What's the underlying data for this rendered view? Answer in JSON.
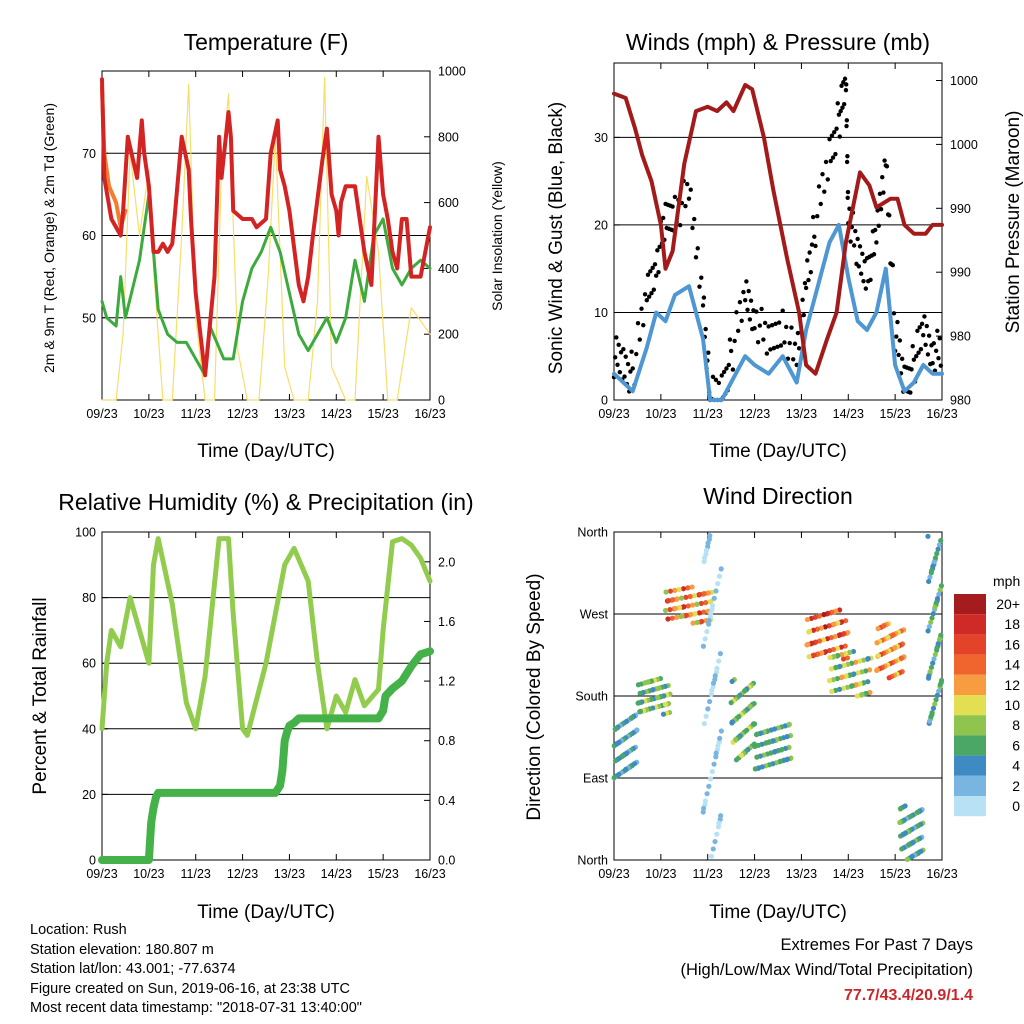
{
  "temperature": {
    "title": "Temperature (F)",
    "ylabel_left": "2m & 9m T (Red, Orange) & 2m Td (Green)",
    "ylabel_right": "Solar Insolation (Yellow)",
    "xlabel": "Time (Day/UTC)",
    "colors": {
      "t2m": "#d42323",
      "t9m": "#f47c2c",
      "td": "#3daa3d",
      "solar": "#f7de6a"
    }
  },
  "winds": {
    "title": "Winds (mph) & Pressure (mb)",
    "ylabel_left": "Sonic Wind & Gust (Blue, Black)",
    "ylabel_right": "Station Pressure (Maroon)",
    "xlabel": "Time (Day/UTC)",
    "colors": {
      "wind": "#4f97d2",
      "gust": "#000000",
      "pressure": "#a31a1a"
    }
  },
  "humidity": {
    "title": "Relative Humidity (%) & Precipitation (in)",
    "ylabel_left": "Percent & Total Rainfall",
    "xlabel": "Time (Day/UTC)",
    "colors": {
      "rh": "#92cc4e",
      "precip": "#45b249"
    }
  },
  "direction": {
    "title": "Wind Direction",
    "ylabel_left": "Direction (Colored By Speed)",
    "xlabel": "Time (Day/UTC)",
    "legend_unit": "mph",
    "legend_labels": [
      "20+",
      "18",
      "16",
      "14",
      "12",
      "10",
      "8",
      "6",
      "4",
      "2",
      "0"
    ],
    "legend_colors": [
      "#a51c1f",
      "#d02a26",
      "#e34328",
      "#f0652d",
      "#f79c40",
      "#e3df53",
      "#8fc54e",
      "#4aa765",
      "#3d8bc2",
      "#79b5e1",
      "#b9e1f6"
    ]
  },
  "info": {
    "location": "Location: Rush",
    "elevation": "Station elevation: 180.807 m",
    "latlon": "Station lat/lon: 43.001; -77.6374",
    "created": "Figure created on Sun, 2019-06-16, at 23:38 UTC",
    "recent": "Most recent data timestamp: \"2018-07-31 13:40:00\""
  },
  "extremes": {
    "title": "Extremes For Past 7 Days",
    "subtitle": "(High/Low/Max Wind/Total Precipitation)",
    "value": "77.7/43.4/20.9/1.4"
  },
  "chart_data": [
    {
      "type": "line",
      "title": "Temperature (F)",
      "xlabel": "Time (Day/UTC)",
      "ylabel": "2m & 9m T (Red, Orange) & 2m Td (Green)",
      "y2label": "Solar Insolation (Yellow)",
      "x_ticks": [
        "09/23",
        "10/23",
        "11/23",
        "12/23",
        "13/23",
        "14/23",
        "15/23",
        "16/23"
      ],
      "xlim": [
        0,
        7
      ],
      "ylim": [
        40,
        80
      ],
      "y_ticks": [
        50,
        60,
        70
      ],
      "y2lim": [
        0,
        1000
      ],
      "y2_ticks": [
        0,
        200,
        400,
        600,
        800,
        1000
      ],
      "grid": "horizontal",
      "series": [
        {
          "name": "2m T",
          "axis": "left",
          "x": [
            0,
            0.05,
            0.2,
            0.4,
            0.45,
            0.55,
            0.75,
            0.85,
            0.9,
            1.0,
            1.1,
            1.2,
            1.3,
            1.4,
            1.5,
            1.7,
            1.85,
            1.9,
            2.0,
            2.1,
            2.2,
            2.4,
            2.5,
            2.55,
            2.7,
            2.75,
            2.8,
            3.0,
            3.2,
            3.3,
            3.5,
            3.6,
            3.75,
            3.8,
            3.9,
            4.0,
            4.2,
            4.3,
            4.4,
            4.5,
            4.7,
            4.8,
            4.9,
            5.0,
            5.05,
            5.1,
            5.2,
            5.4,
            5.6,
            5.75,
            5.8,
            5.9,
            6.0,
            6.1,
            6.2,
            6.3,
            6.4,
            6.5,
            6.6,
            6.8,
            7.0
          ],
          "y": [
            79,
            67,
            62,
            60,
            63,
            72,
            67,
            74,
            70,
            66,
            58,
            58,
            59,
            58,
            59,
            72,
            68,
            62,
            53,
            48,
            43,
            55,
            72,
            67,
            75,
            72,
            63,
            62,
            62,
            61,
            62,
            70,
            74,
            68,
            66,
            63,
            54,
            52,
            55,
            60,
            69,
            73,
            65,
            63,
            60,
            64,
            66,
            66,
            58,
            54,
            60,
            72,
            65,
            62,
            58,
            56,
            62,
            62,
            55,
            55,
            61
          ]
        },
        {
          "name": "9m T",
          "axis": "left",
          "x": [
            0,
            0.05,
            0.15,
            0.3,
            0.4,
            0.5
          ],
          "y": [
            78,
            70,
            66,
            64,
            61,
            63
          ]
        },
        {
          "name": "2m Td",
          "axis": "left",
          "x": [
            0,
            0.1,
            0.3,
            0.4,
            0.5,
            0.8,
            1.0,
            1.1,
            1.2,
            1.4,
            1.6,
            1.8,
            2.0,
            2.2,
            2.3,
            2.6,
            2.8,
            3.0,
            3.2,
            3.4,
            3.6,
            3.8,
            4.0,
            4.2,
            4.4,
            4.6,
            4.8,
            5.0,
            5.2,
            5.4,
            5.6,
            5.8,
            6.0,
            6.2,
            6.4,
            6.6,
            6.8,
            7.0
          ],
          "y": [
            52,
            50,
            49,
            55,
            50,
            57,
            65,
            58,
            51,
            48,
            47,
            47,
            45,
            43,
            49,
            45,
            45,
            52,
            56,
            58,
            61,
            58,
            53,
            48,
            46,
            48,
            50,
            47,
            50,
            57,
            52,
            60,
            62,
            56,
            54,
            56,
            57,
            56
          ]
        },
        {
          "name": "Solar Insolation",
          "axis": "right",
          "x": [
            0,
            0.3,
            0.45,
            0.6,
            0.8,
            1.0,
            1.1,
            1.3,
            1.5,
            1.7,
            1.85,
            2.0,
            2.2,
            2.4,
            2.55,
            2.7,
            2.9,
            3.1,
            3.35,
            3.55,
            3.7,
            3.9,
            4.1,
            4.4,
            4.6,
            4.75,
            4.9,
            5.2,
            5.4,
            5.65,
            5.9,
            6.1,
            6.3,
            6.6,
            7.0
          ],
          "y": [
            0,
            0,
            200,
            750,
            500,
            700,
            400,
            0,
            0,
            500,
            960,
            250,
            0,
            0,
            700,
            930,
            150,
            0,
            0,
            380,
            800,
            100,
            0,
            0,
            300,
            980,
            100,
            0,
            0,
            680,
            450,
            0,
            0,
            280,
            200
          ]
        }
      ]
    },
    {
      "type": "line",
      "title": "Winds (mph) & Pressure (mb)",
      "xlabel": "Time (Day/UTC)",
      "ylabel": "Sonic Wind & Gust (Blue, Black)",
      "y2label": "Station Pressure (Maroon)",
      "x_ticks": [
        "09/23",
        "10/23",
        "11/23",
        "12/23",
        "13/23",
        "14/23",
        "15/23",
        "16/23"
      ],
      "xlim": [
        0,
        7
      ],
      "ylim": [
        0,
        38.5
      ],
      "y_ticks": [
        0,
        10,
        20,
        30
      ],
      "y2_tick_labels": [
        "980",
        "980",
        "990",
        "990",
        "1000",
        "1000"
      ],
      "grid": "horizontal",
      "series": [
        {
          "name": "Sonic Wind",
          "axis": "left",
          "x": [
            0,
            0.2,
            0.4,
            0.7,
            0.9,
            1.1,
            1.3,
            1.6,
            1.9,
            2.05,
            2.3,
            2.5,
            2.8,
            3.0,
            3.3,
            3.6,
            3.9,
            4.1,
            4.3,
            4.6,
            4.8,
            5.0,
            5.2,
            5.4,
            5.6,
            5.8,
            6.0,
            6.2,
            6.4,
            6.6,
            6.8,
            7.0
          ],
          "y": [
            3,
            2,
            1,
            6,
            10,
            9,
            12,
            13,
            7,
            0,
            0,
            2,
            5,
            4,
            3,
            5,
            2,
            8,
            12,
            18,
            20,
            14,
            9,
            8,
            10,
            15,
            4,
            1,
            2,
            4,
            3,
            3
          ]
        },
        {
          "name": "Gust",
          "axis": "left",
          "x": [
            0,
            0.2,
            0.4,
            0.7,
            0.9,
            1.1,
            1.3,
            1.6,
            1.9,
            2.05,
            2.3,
            2.5,
            2.8,
            3.0,
            3.3,
            3.6,
            3.9,
            4.1,
            4.3,
            4.6,
            4.8,
            4.95,
            5.0,
            5.2,
            5.4,
            5.6,
            5.8,
            6.0,
            6.2,
            6.4,
            6.6,
            6.8,
            7.0
          ],
          "y": [
            5,
            4,
            3,
            12,
            16,
            20,
            22,
            23,
            12,
            0,
            1,
            5,
            12,
            10,
            6,
            9,
            4,
            14,
            20,
            28,
            32,
            36,
            22,
            16,
            15,
            18,
            28,
            8,
            2,
            4,
            8,
            6,
            5
          ]
        },
        {
          "name": "Station Pressure",
          "axis": "left",
          "x": [
            0,
            0.25,
            0.45,
            0.6,
            0.8,
            1.0,
            1.1,
            1.25,
            1.5,
            1.75,
            2.0,
            2.2,
            2.4,
            2.55,
            2.8,
            2.95,
            3.2,
            3.4,
            3.7,
            3.95,
            4.1,
            4.3,
            4.55,
            4.75,
            4.95,
            5.25,
            5.45,
            5.6,
            5.9,
            6.05,
            6.2,
            6.4,
            6.65,
            6.8,
            7.0
          ],
          "y": [
            35,
            34.5,
            31,
            28,
            25,
            20,
            15,
            17,
            27,
            33,
            33.5,
            33,
            34,
            33,
            36,
            35.5,
            30,
            24,
            16,
            10,
            4,
            3,
            7,
            10,
            18,
            26,
            24.5,
            22,
            23,
            23,
            20,
            19,
            19,
            20,
            20
          ]
        }
      ]
    },
    {
      "type": "line",
      "title": "Relative Humidity (%) & Precipitation (in)",
      "xlabel": "Time (Day/UTC)",
      "ylabel": "Percent & Total Rainfall",
      "x_ticks": [
        "09/23",
        "10/23",
        "11/23",
        "12/23",
        "13/23",
        "14/23",
        "15/23",
        "16/23"
      ],
      "xlim": [
        0,
        7
      ],
      "ylim": [
        0,
        100
      ],
      "y_ticks": [
        0,
        20,
        40,
        60,
        80,
        100
      ],
      "y2lim": [
        0,
        2.2
      ],
      "y2_ticks": [
        0.0,
        0.4,
        0.8,
        1.2,
        1.6,
        2.0
      ],
      "grid": "horizontal",
      "series": [
        {
          "name": "Relative Humidity",
          "axis": "left",
          "x": [
            0,
            0.1,
            0.2,
            0.4,
            0.6,
            0.8,
            1.0,
            1.1,
            1.2,
            1.5,
            1.8,
            2.0,
            2.2,
            2.5,
            2.7,
            2.8,
            3.0,
            3.1,
            3.5,
            3.9,
            4.1,
            4.4,
            4.6,
            4.8,
            5.0,
            5.2,
            5.4,
            5.6,
            5.9,
            6.0,
            6.2,
            6.4,
            6.6,
            6.8,
            7.0
          ],
          "y": [
            40,
            60,
            70,
            65,
            80,
            70,
            60,
            90,
            98,
            78,
            48,
            40,
            56,
            98,
            98,
            75,
            40,
            38,
            60,
            90,
            95,
            85,
            60,
            40,
            50,
            45,
            55,
            47,
            52,
            70,
            97,
            98,
            96,
            92,
            85
          ]
        },
        {
          "name": "Total Rainfall",
          "axis": "right",
          "x": [
            0,
            1.0,
            1.02,
            1.05,
            1.1,
            1.15,
            1.2,
            2.0,
            3.0,
            3.7,
            3.8,
            3.85,
            3.9,
            3.95,
            4.0,
            4.1,
            4.2,
            5.0,
            5.9,
            6.0,
            6.05,
            6.2,
            6.4,
            6.6,
            6.8,
            7.0
          ],
          "y": [
            0,
            0,
            0.1,
            0.25,
            0.35,
            0.42,
            0.45,
            0.45,
            0.45,
            0.45,
            0.5,
            0.6,
            0.8,
            0.86,
            0.9,
            0.92,
            0.95,
            0.95,
            0.95,
            1.0,
            1.1,
            1.15,
            1.2,
            1.3,
            1.38,
            1.4
          ]
        }
      ]
    },
    {
      "type": "scatter",
      "title": "Wind Direction",
      "xlabel": "Time (Day/UTC)",
      "ylabel": "Direction (Colored By Speed)",
      "x_ticks": [
        "09/23",
        "10/23",
        "11/23",
        "12/23",
        "13/23",
        "14/23",
        "15/23",
        "16/23"
      ],
      "xlim": [
        0,
        7
      ],
      "ylim": [
        0,
        360
      ],
      "y_ticks": [
        0,
        90,
        180,
        270,
        360
      ],
      "y_tick_labels": [
        "North",
        "East",
        "South",
        "West",
        "North"
      ],
      "grid": "horizontal",
      "legend": {
        "title": "mph",
        "placement": "right",
        "labels": [
          "20+",
          "18",
          "16",
          "14",
          "12",
          "10",
          "8",
          "6",
          "4",
          "2",
          "0"
        ]
      },
      "clusters": [
        {
          "x": [
            0.0,
            0.5
          ],
          "dir": [
            90,
            160
          ],
          "speed": [
            2,
            6
          ]
        },
        {
          "x": [
            0.5,
            1.2
          ],
          "dir": [
            160,
            200
          ],
          "speed": [
            4,
            10
          ]
        },
        {
          "x": [
            1.1,
            2.1
          ],
          "dir": [
            260,
            300
          ],
          "speed": [
            8,
            18
          ]
        },
        {
          "x": [
            1.9,
            2.3
          ],
          "dir": [
            0,
            360
          ],
          "speed": [
            0,
            2
          ]
        },
        {
          "x": [
            2.5,
            3.0
          ],
          "dir": [
            110,
            200
          ],
          "speed": [
            4,
            10
          ]
        },
        {
          "x": [
            3.0,
            3.8
          ],
          "dir": [
            100,
            150
          ],
          "speed": [
            3,
            8
          ]
        },
        {
          "x": [
            4.1,
            5.0
          ],
          "dir": [
            220,
            275
          ],
          "speed": [
            10,
            20
          ]
        },
        {
          "x": [
            4.6,
            5.5
          ],
          "dir": [
            180,
            230
          ],
          "speed": [
            4,
            12
          ]
        },
        {
          "x": [
            5.6,
            6.2
          ],
          "dir": [
            200,
            260
          ],
          "speed": [
            10,
            16
          ]
        },
        {
          "x": [
            6.1,
            6.6
          ],
          "dir": [
            0,
            60
          ],
          "speed": [
            2,
            8
          ]
        },
        {
          "x": [
            6.7,
            7.0
          ],
          "dir": [
            150,
            360
          ],
          "speed": [
            2,
            8
          ]
        }
      ]
    }
  ]
}
